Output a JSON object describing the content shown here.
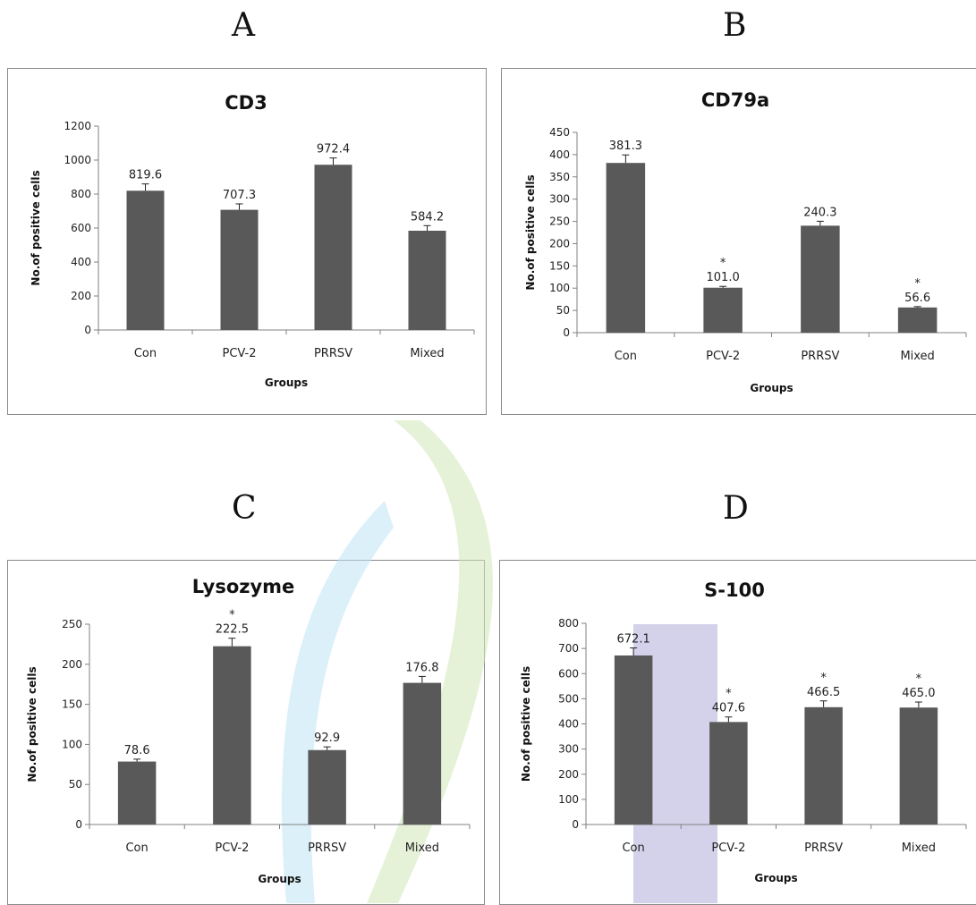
{
  "panels": [
    {
      "letter": "A"
    },
    {
      "letter": "B"
    },
    {
      "letter": "C"
    },
    {
      "letter": "D"
    }
  ],
  "colors": {
    "bar": "#595959",
    "axis": "#808080",
    "frame": "#8a8a8a"
  },
  "chart_data": [
    {
      "type": "bar",
      "title": "CD3",
      "xlabel": "Groups",
      "ylabel": "No.of positive cells",
      "categories": [
        "Con",
        "PCV-2",
        "PRRSV",
        "Mixed"
      ],
      "values": [
        819.6,
        707.3,
        972.4,
        584.2
      ],
      "data_labels": [
        "819.6",
        "707.3",
        "972.4",
        "584.2"
      ],
      "errors": [
        40,
        35,
        40,
        30
      ],
      "significance": [
        "",
        "",
        "",
        ""
      ],
      "ylim": [
        0,
        1200
      ],
      "yticks": [
        "0",
        "200",
        "400",
        "600",
        "800",
        "1000",
        "1200"
      ],
      "grid": false,
      "legend": "none"
    },
    {
      "type": "bar",
      "title": "CD79a",
      "xlabel": "Groups",
      "ylabel": "No.of positive cells",
      "categories": [
        "Con",
        "PCV-2",
        "PRRSV",
        "Mixed"
      ],
      "values": [
        381.3,
        101.0,
        240.3,
        56.6
      ],
      "data_labels": [
        "381.3",
        "101.0",
        "240.3",
        "56.6"
      ],
      "errors": [
        18,
        3,
        10,
        2
      ],
      "significance": [
        "",
        "*",
        "",
        "*"
      ],
      "ylim": [
        0,
        450
      ],
      "yticks": [
        "0",
        "50",
        "100",
        "150",
        "200",
        "250",
        "300",
        "350",
        "400",
        "450"
      ],
      "grid": false,
      "legend": "none"
    },
    {
      "type": "bar",
      "title": "Lysozyme",
      "xlabel": "Groups",
      "ylabel": "No.of positive cells",
      "categories": [
        "Con",
        "PCV-2",
        "PRRSV",
        "Mixed"
      ],
      "values": [
        78.6,
        222.5,
        92.9,
        176.8
      ],
      "data_labels": [
        "78.6",
        "222.5",
        "92.9",
        "176.8"
      ],
      "errors": [
        3,
        10,
        4,
        8
      ],
      "significance": [
        "",
        "*",
        "",
        ""
      ],
      "ylim": [
        0,
        250
      ],
      "yticks": [
        "0",
        "50",
        "100",
        "150",
        "200",
        "250"
      ],
      "grid": false,
      "legend": "none"
    },
    {
      "type": "bar",
      "title": "S-100",
      "xlabel": "Groups",
      "ylabel": "No.of positive cells",
      "categories": [
        "Con",
        "PCV-2",
        "PRRSV",
        "Mixed"
      ],
      "values": [
        672.1,
        407.6,
        466.5,
        465.0
      ],
      "data_labels": [
        "672.1",
        "407.6",
        "466.5",
        "465.0"
      ],
      "errors": [
        30,
        20,
        25,
        22
      ],
      "significance": [
        "",
        "*",
        "*",
        "*"
      ],
      "ylim": [
        0,
        800
      ],
      "yticks": [
        "0",
        "100",
        "200",
        "300",
        "400",
        "500",
        "600",
        "700",
        "800"
      ],
      "grid": false,
      "legend": "none"
    }
  ]
}
